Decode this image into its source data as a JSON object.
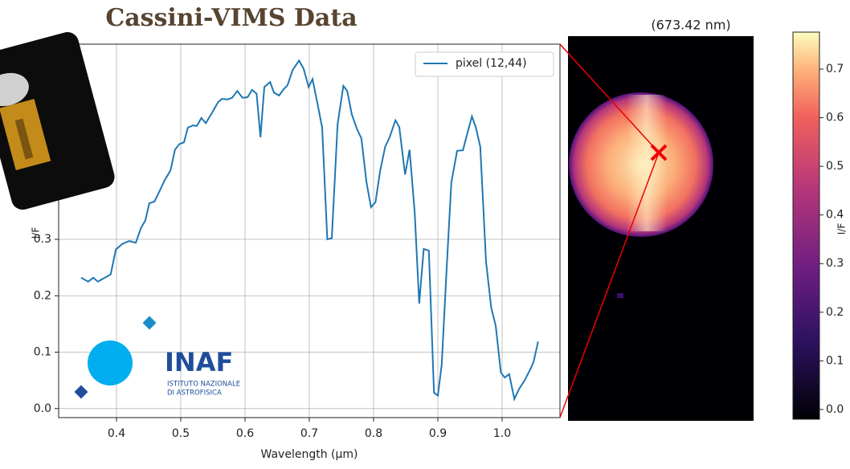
{
  "header": {
    "title": "Cassini-VIMS Data"
  },
  "logo": {
    "name": "INAF",
    "line1": "ISTITUTO NAZIONALE",
    "line2": "DI ASTROFISICA"
  },
  "chart_data": [
    {
      "type": "line",
      "xlabel": "Wavelength (μm)",
      "ylabel": "I/F",
      "x": [
        0.345,
        0.356,
        0.364,
        0.371,
        0.391,
        0.399,
        0.409,
        0.42,
        0.43,
        0.438,
        0.445,
        0.451,
        0.459,
        0.466,
        0.475,
        0.484,
        0.491,
        0.498,
        0.505,
        0.511,
        0.519,
        0.525,
        0.532,
        0.539,
        0.549,
        0.558,
        0.564,
        0.573,
        0.58,
        0.588,
        0.596,
        0.604,
        0.611,
        0.618,
        0.624,
        0.63,
        0.639,
        0.645,
        0.653,
        0.66,
        0.666,
        0.674,
        0.684,
        0.691,
        0.699,
        0.705,
        0.713,
        0.72,
        0.728,
        0.735,
        0.744,
        0.753,
        0.759,
        0.766,
        0.774,
        0.781,
        0.789,
        0.796,
        0.803,
        0.81,
        0.818,
        0.825,
        0.834,
        0.84,
        0.849,
        0.856,
        0.864,
        0.871,
        0.878,
        0.886,
        0.894,
        0.9,
        0.906,
        0.914,
        0.921,
        0.93,
        0.939,
        0.945,
        0.953,
        0.959,
        0.966,
        0.975,
        0.983,
        0.99,
        0.998,
        1.004,
        1.011,
        1.019,
        1.026,
        1.035,
        1.044,
        1.049,
        1.056
      ],
      "series": [
        {
          "name": "pixel (12,44)",
          "color": "#1f77b4",
          "values": [
            0.232,
            0.225,
            0.232,
            0.225,
            0.238,
            0.282,
            0.292,
            0.297,
            0.294,
            0.32,
            0.334,
            0.364,
            0.367,
            0.383,
            0.405,
            0.422,
            0.459,
            0.469,
            0.472,
            0.498,
            0.502,
            0.501,
            0.515,
            0.506,
            0.525,
            0.543,
            0.549,
            0.548,
            0.551,
            0.563,
            0.551,
            0.552,
            0.565,
            0.558,
            0.481,
            0.57,
            0.579,
            0.56,
            0.555,
            0.566,
            0.573,
            0.6,
            0.617,
            0.603,
            0.57,
            0.584,
            0.539,
            0.498,
            0.3,
            0.302,
            0.504,
            0.572,
            0.563,
            0.522,
            0.496,
            0.479,
            0.401,
            0.357,
            0.366,
            0.42,
            0.464,
            0.481,
            0.511,
            0.499,
            0.415,
            0.459,
            0.347,
            0.186,
            0.283,
            0.28,
            0.028,
            0.023,
            0.078,
            0.255,
            0.401,
            0.457,
            0.458,
            0.484,
            0.518,
            0.499,
            0.464,
            0.26,
            0.179,
            0.147,
            0.064,
            0.055,
            0.061,
            0.017,
            0.034,
            0.05,
            0.07,
            0.083,
            0.119
          ]
        }
      ],
      "xlim": [
        0.31,
        1.09
      ],
      "xticks": [
        0.4,
        0.5,
        0.6,
        0.7,
        0.8,
        0.9,
        {
          "value": 1,
          "label": "1.0"
        }
      ],
      "ylim": [
        -0.016,
        0.646
      ],
      "yticks": [
        {
          "value": 0,
          "label": "0.0"
        },
        0.1,
        0.2,
        0.3
      ],
      "grid": true,
      "legend": "upper right"
    },
    {
      "type": "image",
      "title": "(673.42 nm)",
      "ylabel": "I/F",
      "ylim": [
        -0.02,
        0.776
      ],
      "yticks": [
        {
          "value": 0,
          "label": "0.0"
        },
        0.1,
        0.2,
        0.3,
        0.4,
        0.5,
        0.6,
        0.7
      ]
    }
  ]
}
